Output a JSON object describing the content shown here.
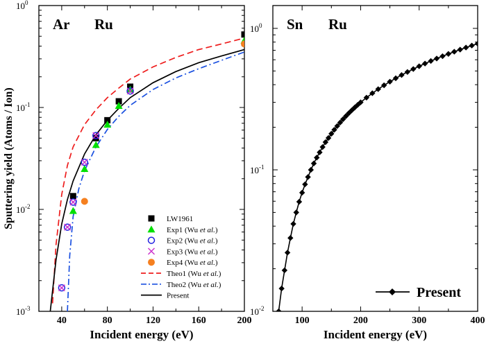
{
  "chart_data": [
    {
      "type": "scatter",
      "panel_label_left": "Ar",
      "panel_label_right": "Ru",
      "xlabel": "Incident energy (eV)",
      "ylabel": "Sputtering yield (Atoms / Ion)",
      "xlim": [
        20,
        200
      ],
      "ylim": [
        0.001,
        1
      ],
      "yscale": "log",
      "x_ticks": [
        40,
        80,
        120,
        160,
        200
      ],
      "y_ticks": [
        {
          "value": 0.001,
          "base": "10",
          "exp": "-3"
        },
        {
          "value": 0.01,
          "base": "10",
          "exp": "-2"
        },
        {
          "value": 0.1,
          "base": "10",
          "exp": "-1"
        },
        {
          "value": 1,
          "base": "10",
          "exp": "0"
        }
      ],
      "legend_position": "lower-right",
      "series": [
        {
          "name": "LW1961",
          "name_main": "LW1961",
          "name_italic": "",
          "name_tail": "",
          "marker": "square",
          "color": "#000000",
          "x": [
            50,
            70,
            80,
            90,
            100,
            200
          ],
          "y": [
            0.0135,
            0.05,
            0.075,
            0.115,
            0.16,
            0.52
          ]
        },
        {
          "name": "Exp1 (Wu et al.)",
          "name_main": "Exp1 (Wu ",
          "name_italic": "et al.",
          "name_tail": ")",
          "marker": "triangle",
          "color": "#00e000",
          "x": [
            50,
            60,
            70,
            80,
            90,
            100,
            200
          ],
          "y": [
            0.0097,
            0.025,
            0.043,
            0.068,
            0.104,
            0.15,
            0.455
          ]
        },
        {
          "name": "Exp2 (Wu et al.)",
          "name_main": "Exp2 (Wu ",
          "name_italic": "et al.",
          "name_tail": ")",
          "marker": "circle-open",
          "color": "#2020e0",
          "x": [
            40,
            45,
            50,
            60,
            70,
            100
          ],
          "y": [
            0.0017,
            0.0067,
            0.0118,
            0.029,
            0.053,
            0.145
          ]
        },
        {
          "name": "Exp3 (Wu et al.)",
          "name_main": "Exp3 (Wu ",
          "name_italic": "et al.",
          "name_tail": ")",
          "marker": "x",
          "color": "#cc33cc",
          "x": [
            40,
            45,
            50,
            60,
            70,
            100
          ],
          "y": [
            0.0017,
            0.0067,
            0.0118,
            0.029,
            0.053,
            0.145
          ]
        },
        {
          "name": "Exp4 (Wu et al.)",
          "name_main": "Exp4 (Wu ",
          "name_italic": "et al.",
          "name_tail": ")",
          "marker": "circle-filled",
          "color": "#f58020",
          "x": [
            60,
            200
          ],
          "y": [
            0.012,
            0.42
          ]
        },
        {
          "name": "Theo1 (Wu et al.)",
          "name_main": "Theo1 (Wu ",
          "name_italic": "et al.",
          "name_tail": ")",
          "line": "dashed",
          "color": "#ee1c1c",
          "x": [
            32,
            35,
            40,
            45,
            50,
            60,
            70,
            80,
            90,
            100,
            120,
            140,
            160,
            180,
            200
          ],
          "y": [
            0.0012,
            0.0045,
            0.014,
            0.027,
            0.041,
            0.068,
            0.095,
            0.125,
            0.155,
            0.19,
            0.25,
            0.31,
            0.37,
            0.42,
            0.48
          ]
        },
        {
          "name": "Theo2 (Wu et al.)",
          "name_main": "Theo2 (Wu ",
          "name_italic": "et al.",
          "name_tail": ")",
          "line": "dashdot",
          "color": "#1a50e0",
          "x": [
            45,
            47,
            50,
            55,
            60,
            70,
            80,
            90,
            100,
            120,
            140,
            160,
            180,
            200
          ],
          "y": [
            0.001,
            0.0035,
            0.0085,
            0.016,
            0.024,
            0.041,
            0.061,
            0.082,
            0.105,
            0.15,
            0.195,
            0.24,
            0.29,
            0.35
          ]
        },
        {
          "name": "Present",
          "name_main": "Present",
          "name_italic": "",
          "name_tail": "",
          "line": "solid",
          "color": "#000000",
          "x": [
            30,
            35,
            40,
            45,
            50,
            60,
            70,
            80,
            90,
            100,
            120,
            140,
            160,
            180,
            200
          ],
          "y": [
            0.001,
            0.0032,
            0.0072,
            0.0125,
            0.019,
            0.035,
            0.054,
            0.075,
            0.098,
            0.125,
            0.175,
            0.225,
            0.275,
            0.32,
            0.37
          ]
        }
      ]
    },
    {
      "type": "line",
      "panel_label_left": "Sn",
      "panel_label_right": "Ru",
      "xlabel": "Incident energy (eV)",
      "ylabel": "",
      "xlim": [
        50,
        400
      ],
      "ylim": [
        0.01,
        1.45
      ],
      "yscale": "log",
      "x_ticks": [
        100,
        200,
        300,
        400
      ],
      "y_ticks": [
        {
          "value": 0.01,
          "base": "10",
          "exp": "-2"
        },
        {
          "value": 0.1,
          "base": "10",
          "exp": "-1"
        },
        {
          "value": 1,
          "base": "10",
          "exp": "0"
        }
      ],
      "legend_position": "lower-right",
      "series": [
        {
          "name": "Present",
          "marker": "diamond",
          "color": "#000000",
          "x": [
            60,
            65,
            70,
            75,
            80,
            85,
            90,
            95,
            100,
            105,
            110,
            115,
            120,
            125,
            130,
            135,
            140,
            145,
            150,
            155,
            160,
            165,
            170,
            175,
            180,
            185,
            190,
            195,
            200,
            210,
            220,
            230,
            240,
            250,
            260,
            270,
            280,
            290,
            300,
            310,
            320,
            330,
            340,
            350,
            360,
            370,
            380,
            390,
            400
          ],
          "y": [
            0.01,
            0.0145,
            0.0195,
            0.026,
            0.033,
            0.0415,
            0.05,
            0.0595,
            0.069,
            0.079,
            0.089,
            0.1,
            0.111,
            0.122,
            0.133,
            0.145,
            0.157,
            0.168,
            0.18,
            0.192,
            0.204,
            0.216,
            0.228,
            0.24,
            0.252,
            0.264,
            0.276,
            0.288,
            0.3,
            0.324,
            0.348,
            0.372,
            0.396,
            0.42,
            0.444,
            0.468,
            0.492,
            0.516,
            0.54,
            0.564,
            0.588,
            0.612,
            0.636,
            0.66,
            0.684,
            0.708,
            0.732,
            0.756,
            0.78
          ]
        }
      ]
    }
  ]
}
